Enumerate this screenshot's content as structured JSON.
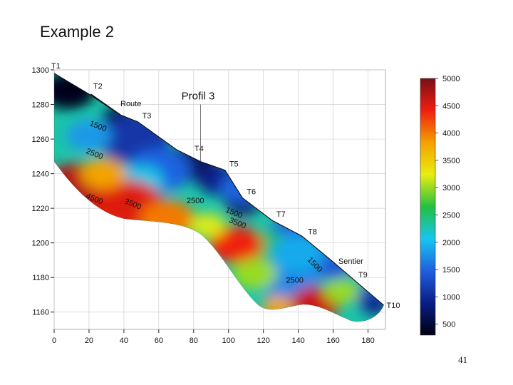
{
  "slide": {
    "title": "Example 2",
    "page_number": "41"
  },
  "chart_data": {
    "type": "heatmap",
    "title": "Profil 3",
    "xlabel": "",
    "ylabel": "",
    "xlim": [
      0,
      190
    ],
    "ylim": [
      1150,
      1300
    ],
    "x_ticks": [
      0,
      20,
      40,
      60,
      80,
      100,
      120,
      140,
      160,
      180
    ],
    "y_ticks": [
      1160,
      1180,
      1200,
      1220,
      1240,
      1260,
      1280,
      1300
    ],
    "grid": true,
    "colorbar": {
      "position": "right",
      "min": 300,
      "max": 5000,
      "ticks": [
        500,
        1000,
        1500,
        2000,
        2500,
        3000,
        3500,
        4000,
        4500,
        5000
      ],
      "stops": [
        "#000010",
        "#0a1d86",
        "#1f5fe0",
        "#17c6f0",
        "#23c040",
        "#e8ee10",
        "#f5a000",
        "#f01e10",
        "#7a0f16"
      ]
    },
    "surface_profile": [
      {
        "x": 0,
        "y": 1298
      },
      {
        "x": 20,
        "y": 1286
      },
      {
        "x": 38,
        "y": 1274
      },
      {
        "x": 48,
        "y": 1270
      },
      {
        "x": 70,
        "y": 1254
      },
      {
        "x": 84,
        "y": 1247
      },
      {
        "x": 98,
        "y": 1242
      },
      {
        "x": 108,
        "y": 1226
      },
      {
        "x": 125,
        "y": 1213
      },
      {
        "x": 142,
        "y": 1204
      },
      {
        "x": 160,
        "y": 1189
      },
      {
        "x": 175,
        "y": 1176
      },
      {
        "x": 189,
        "y": 1164
      }
    ],
    "markers": [
      {
        "label": "T1",
        "x": 0,
        "y": 1298
      },
      {
        "label": "T2",
        "x": 20,
        "y": 1287
      },
      {
        "label": "T3",
        "x": 48,
        "y": 1270
      },
      {
        "label": "T4",
        "x": 78,
        "y": 1251
      },
      {
        "label": "T5",
        "x": 98,
        "y": 1242
      },
      {
        "label": "T6",
        "x": 108,
        "y": 1226
      },
      {
        "label": "T7",
        "x": 125,
        "y": 1213
      },
      {
        "label": "T8",
        "x": 143,
        "y": 1203
      },
      {
        "label": "T9",
        "x": 172,
        "y": 1178
      },
      {
        "label": "T10",
        "x": 189,
        "y": 1164
      }
    ],
    "annotations": [
      {
        "text": "Route",
        "x": 38,
        "y": 1279
      },
      {
        "text": "Profil 3",
        "x": 73,
        "y": 1283
      },
      {
        "text": "Sentier",
        "x": 163,
        "y": 1188
      }
    ],
    "contour_labels": [
      {
        "text": "1500",
        "x": 20,
        "y": 1268,
        "angle": 22
      },
      {
        "text": "2500",
        "x": 18,
        "y": 1252,
        "angle": 22
      },
      {
        "text": "4500",
        "x": 18,
        "y": 1226,
        "angle": 22
      },
      {
        "text": "3500",
        "x": 40,
        "y": 1223,
        "angle": 22
      },
      {
        "text": "2500",
        "x": 76,
        "y": 1223,
        "angle": 0
      },
      {
        "text": "1500",
        "x": 98,
        "y": 1218,
        "angle": 22
      },
      {
        "text": "3500",
        "x": 100,
        "y": 1212,
        "angle": 22
      },
      {
        "text": "1500",
        "x": 145,
        "y": 1190,
        "angle": 45
      },
      {
        "text": "2500",
        "x": 133,
        "y": 1177,
        "angle": 0
      }
    ],
    "anomalies": [
      {
        "x": 8,
        "y": 1288,
        "r": 12,
        "value": 350
      },
      {
        "x": 38,
        "y": 1272,
        "r": 8,
        "value": 500
      },
      {
        "x": 46,
        "y": 1260,
        "r": 16,
        "value": 1100
      },
      {
        "x": 78,
        "y": 1246,
        "r": 12,
        "value": 700
      },
      {
        "x": 96,
        "y": 1236,
        "r": 10,
        "value": 900
      },
      {
        "x": 108,
        "y": 1223,
        "r": 8,
        "value": 700
      },
      {
        "x": 60,
        "y": 1242,
        "r": 14,
        "value": 1500
      },
      {
        "x": 108,
        "y": 1232,
        "r": 10,
        "value": 1500
      },
      {
        "x": 20,
        "y": 1262,
        "r": 10,
        "value": 1800
      },
      {
        "x": 50,
        "y": 1236,
        "r": 10,
        "value": 2100
      },
      {
        "x": 136,
        "y": 1206,
        "r": 10,
        "value": 1500
      },
      {
        "x": 150,
        "y": 1196,
        "r": 8,
        "value": 1200
      },
      {
        "x": 160,
        "y": 1186,
        "r": 8,
        "value": 1400
      },
      {
        "x": 178,
        "y": 1170,
        "r": 7,
        "value": 1300
      },
      {
        "x": 184,
        "y": 1164,
        "r": 6,
        "value": 900
      },
      {
        "x": 122,
        "y": 1194,
        "r": 14,
        "value": 2600
      },
      {
        "x": 134,
        "y": 1180,
        "r": 14,
        "value": 1700
      },
      {
        "x": 140,
        "y": 1194,
        "r": 12,
        "value": 1900
      },
      {
        "x": 15,
        "y": 1230,
        "r": 18,
        "value": 4700
      },
      {
        "x": 42,
        "y": 1222,
        "r": 16,
        "value": 4500
      },
      {
        "x": 65,
        "y": 1214,
        "r": 12,
        "value": 4000
      },
      {
        "x": 28,
        "y": 1240,
        "r": 10,
        "value": 3800
      },
      {
        "x": 104,
        "y": 1199,
        "r": 12,
        "value": 4400
      },
      {
        "x": 88,
        "y": 1210,
        "r": 8,
        "value": 3200
      },
      {
        "x": 115,
        "y": 1182,
        "r": 10,
        "value": 3000
      },
      {
        "x": 150,
        "y": 1165,
        "r": 11,
        "value": 4600
      },
      {
        "x": 128,
        "y": 1163,
        "r": 7,
        "value": 3800
      },
      {
        "x": 165,
        "y": 1172,
        "r": 8,
        "value": 3000
      }
    ]
  }
}
